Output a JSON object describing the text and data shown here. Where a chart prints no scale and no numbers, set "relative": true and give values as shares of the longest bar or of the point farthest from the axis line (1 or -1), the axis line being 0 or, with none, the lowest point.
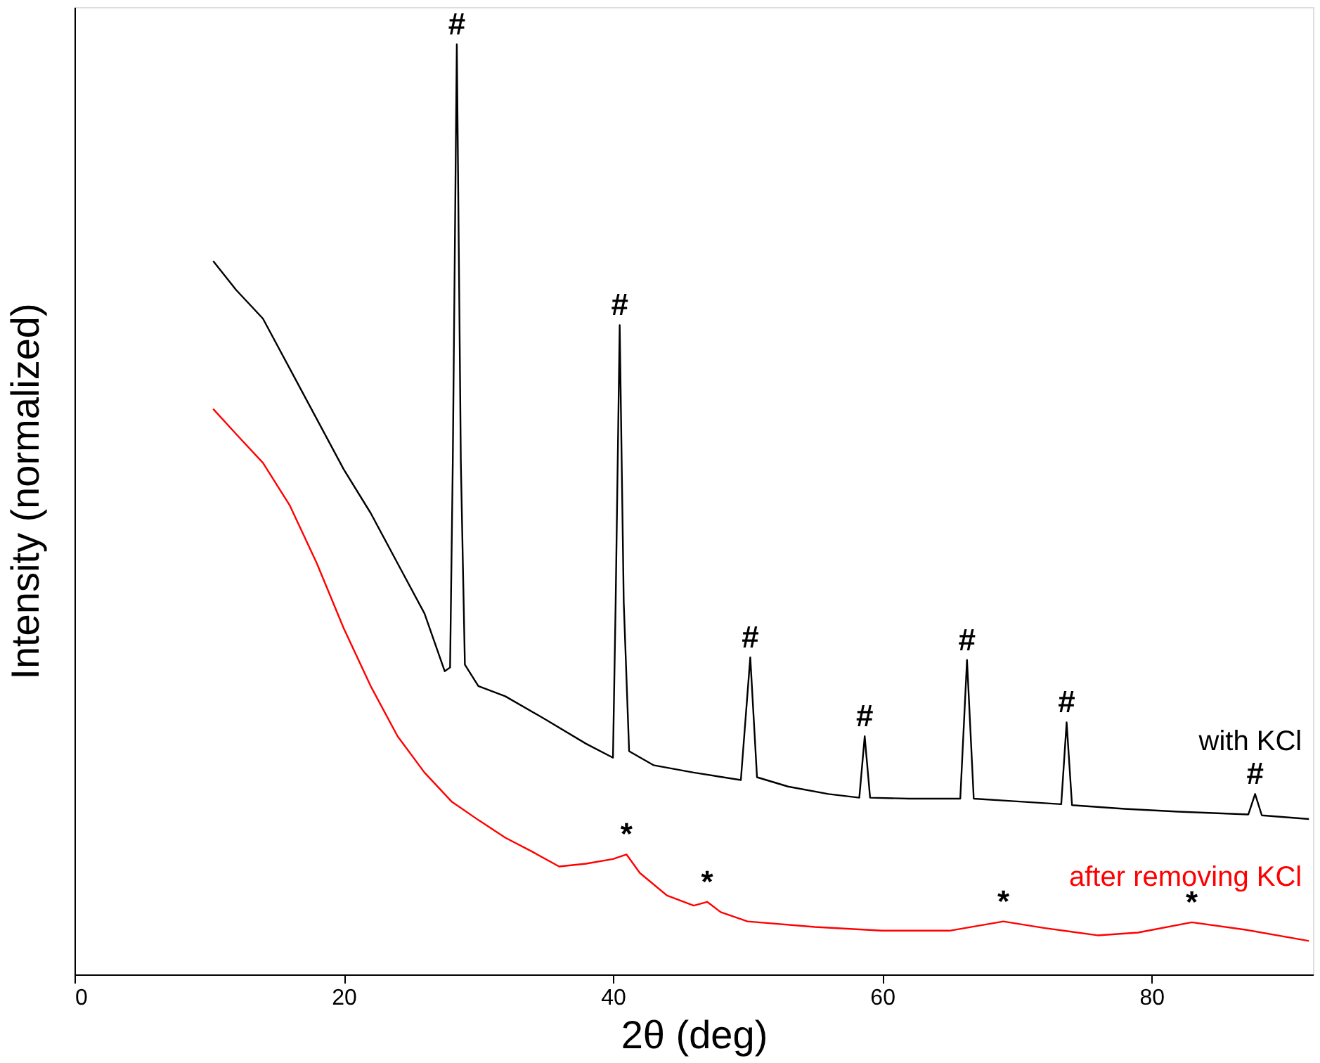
{
  "chart_data": {
    "type": "line",
    "relative": true,
    "xlabel": "2θ (deg)",
    "ylabel": "Intensity (normalized)",
    "xlim": [
      0,
      92
    ],
    "xticks": [
      0,
      20,
      40,
      60,
      80
    ],
    "legend": false,
    "grid": false,
    "series": [
      {
        "name": "with KCl",
        "color": "#000000",
        "x": [
          10.3,
          12,
          14,
          16,
          18,
          20,
          22,
          24,
          26,
          27.5,
          27.9,
          28.1,
          28.4,
          28.7,
          29.0,
          30,
          32,
          35,
          38,
          40,
          40.2,
          40.5,
          40.8,
          41.2,
          43,
          46,
          49.5,
          50.2,
          50.7,
          53,
          56,
          58.3,
          58.7,
          59.1,
          62,
          65.8,
          66.3,
          66.8,
          70,
          73.3,
          73.7,
          74.1,
          78,
          82,
          87.2,
          87.7,
          88.2,
          91.7
        ],
        "values": [
          0.767,
          0.736,
          0.705,
          0.651,
          0.597,
          0.543,
          0.496,
          0.442,
          0.388,
          0.326,
          0.33,
          0.55,
          1.0,
          0.55,
          0.333,
          0.31,
          0.299,
          0.274,
          0.248,
          0.233,
          0.4,
          0.698,
          0.4,
          0.24,
          0.225,
          0.217,
          0.209,
          0.341,
          0.212,
          0.202,
          0.194,
          0.19,
          0.256,
          0.19,
          0.189,
          0.189,
          0.338,
          0.189,
          0.186,
          0.183,
          0.271,
          0.182,
          0.178,
          0.175,
          0.172,
          0.194,
          0.171,
          0.167
        ]
      },
      {
        "name": "after removing KCl",
        "color": "#ff0000",
        "x": [
          10.3,
          12,
          14,
          16,
          18,
          20,
          22,
          24,
          26,
          28,
          30,
          32,
          34,
          36,
          38,
          40,
          41,
          42,
          44,
          46,
          47,
          48,
          50,
          55,
          60,
          65,
          69,
          72,
          76,
          79,
          83,
          87,
          91.7
        ],
        "values": [
          0.608,
          0.581,
          0.55,
          0.504,
          0.442,
          0.372,
          0.31,
          0.256,
          0.217,
          0.186,
          0.166,
          0.147,
          0.132,
          0.116,
          0.119,
          0.124,
          0.129,
          0.109,
          0.085,
          0.074,
          0.078,
          0.067,
          0.057,
          0.051,
          0.047,
          0.047,
          0.057,
          0.05,
          0.042,
          0.045,
          0.056,
          0.048,
          0.036
        ]
      }
    ],
    "annotations": [
      {
        "text": "#",
        "x": 28.4,
        "y": 1.0
      },
      {
        "text": "#",
        "x": 40.5,
        "y": 0.698
      },
      {
        "text": "#",
        "x": 50.2,
        "y": 0.341
      },
      {
        "text": "#",
        "x": 58.7,
        "y": 0.256
      },
      {
        "text": "#",
        "x": 66.3,
        "y": 0.338
      },
      {
        "text": "#",
        "x": 73.7,
        "y": 0.271
      },
      {
        "text": "#",
        "x": 87.7,
        "y": 0.194
      },
      {
        "text": "*",
        "x": 41,
        "y": 0.129
      },
      {
        "text": "*",
        "x": 47,
        "y": 0.078
      },
      {
        "text": "*",
        "x": 69,
        "y": 0.057
      },
      {
        "text": "*",
        "x": 83,
        "y": 0.056
      }
    ]
  }
}
